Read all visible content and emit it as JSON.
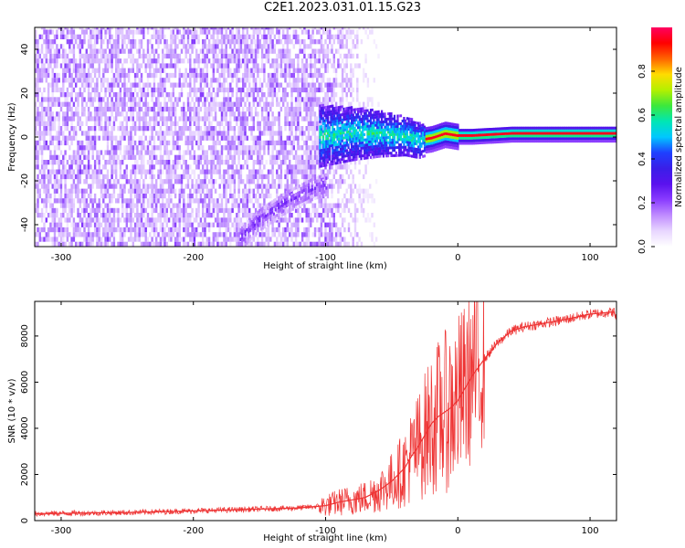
{
  "page": {
    "title": "C2E1.2023.031.01.15.G23"
  },
  "colors": {
    "snr_line": "#ee3333",
    "plot_frame": "#000000",
    "colormap": [
      "#ffffff",
      "#e8d6ff",
      "#c08cff",
      "#8a3cff",
      "#5a12ee",
      "#3a1ee8",
      "#1e40ff",
      "#00c8ff",
      "#00e6b4",
      "#3ce83c",
      "#b4f000",
      "#ffdc00",
      "#ff6400",
      "#ff0000",
      "#ff0060"
    ]
  },
  "chart_data": [
    {
      "type": "heatmap",
      "title": "",
      "xlabel": "Height of straight line (km)",
      "ylabel": "Frequency (Hz)",
      "xlim": [
        -320,
        120
      ],
      "ylim": [
        -50,
        50
      ],
      "xticks": [
        -300,
        -200,
        -100,
        0,
        100
      ],
      "yticks": [
        -40,
        -20,
        0,
        20,
        40
      ],
      "colorbar": {
        "label": "Normalized spectral amplitude",
        "range": [
          0,
          1
        ],
        "ticks": [
          0.0,
          0.2,
          0.4,
          0.6,
          0.8
        ]
      },
      "features": [
        {
          "name": "",
          "x_range": [
            -320,
            -100
          ],
          "y_range": [
            -50,
            50
          ],
          "amplitude": 0.1
        },
        {
          "name": "",
          "x": [
            -165,
            -150,
            -130,
            -110,
            -100
          ],
          "y": [
            -47,
            -38,
            -30,
            -24,
            -22
          ],
          "amplitude": 0.18
        },
        {
          "name": "",
          "x": [
            -105,
            -80,
            -60,
            -40,
            -30,
            -20,
            -10,
            0,
            10,
            40,
            80,
            120
          ],
          "y": [
            0,
            1,
            1,
            0,
            -2,
            -1,
            1,
            0,
            0,
            1,
            1,
            1
          ],
          "amplitude": 0.9
        }
      ]
    },
    {
      "type": "line",
      "title": "",
      "xlabel": "Height of straight line (km)",
      "ylabel": "SNR (10 * v/v)",
      "xlim": [
        -320,
        120
      ],
      "ylim": [
        0,
        9500
      ],
      "xticks": [
        -300,
        -200,
        -100,
        0,
        100
      ],
      "yticks": [
        0,
        2000,
        4000,
        6000,
        8000
      ],
      "series": [
        {
          "x": [
            -320,
            -250,
            -200,
            -150,
            -120,
            -100,
            -90,
            -80,
            -70,
            -60,
            -50,
            -40,
            -35,
            -30,
            -25,
            -20,
            -15,
            -10,
            -5,
            0,
            10,
            20,
            30,
            40,
            50,
            60,
            80,
            100,
            110,
            118,
            120
          ],
          "values": [
            300,
            350,
            420,
            500,
            550,
            650,
            800,
            900,
            1000,
            1300,
            1700,
            2300,
            2800,
            3200,
            3700,
            4200,
            4500,
            4700,
            4900,
            5200,
            6200,
            7000,
            7700,
            8200,
            8400,
            8500,
            8700,
            8950,
            9000,
            9050,
            8700
          ]
        }
      ]
    }
  ]
}
